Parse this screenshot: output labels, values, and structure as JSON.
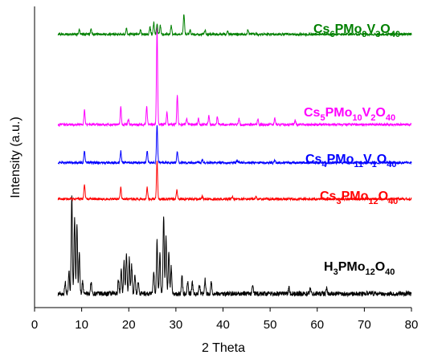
{
  "chart_data": {
    "type": "line",
    "xlabel": "2 Theta",
    "ylabel": "Intensity (a.u.)",
    "xlim": [
      0,
      80
    ],
    "xticks": [
      0,
      10,
      20,
      30,
      40,
      50,
      60,
      70,
      80
    ],
    "x_range": [
      5,
      80
    ],
    "grid": false,
    "yticks_visible": false,
    "series": [
      {
        "name": "H3PMo12O40",
        "label_parts": [
          [
            "H",
            ""
          ],
          [
            "3",
            "sub"
          ],
          [
            "PMo",
            ""
          ],
          [
            "12",
            "sub"
          ],
          [
            "O",
            ""
          ],
          [
            "40",
            "sub"
          ]
        ],
        "color": "#000000",
        "baseline": 0.02,
        "noise": 0.008,
        "peaks": [
          [
            6.5,
            0.04
          ],
          [
            7.3,
            0.08
          ],
          [
            7.9,
            0.34
          ],
          [
            8.5,
            0.26
          ],
          [
            9.0,
            0.24
          ],
          [
            9.5,
            0.14
          ],
          [
            10.2,
            0.04
          ],
          [
            12.0,
            0.04
          ],
          [
            17.8,
            0.05
          ],
          [
            18.4,
            0.08
          ],
          [
            19.0,
            0.11
          ],
          [
            19.5,
            0.14
          ],
          [
            20.1,
            0.12
          ],
          [
            20.6,
            0.1
          ],
          [
            21.3,
            0.07
          ],
          [
            22.0,
            0.04
          ],
          [
            25.3,
            0.08
          ],
          [
            26.0,
            0.18
          ],
          [
            26.6,
            0.14
          ],
          [
            27.4,
            0.27
          ],
          [
            27.9,
            0.2
          ],
          [
            28.5,
            0.15
          ],
          [
            29.0,
            0.09
          ],
          [
            31.3,
            0.06
          ],
          [
            32.5,
            0.04
          ],
          [
            33.5,
            0.04
          ],
          [
            35.0,
            0.03
          ],
          [
            36.2,
            0.05
          ],
          [
            37.5,
            0.04
          ],
          [
            46.3,
            0.03
          ],
          [
            54.0,
            0.02
          ],
          [
            58.5,
            0.015
          ],
          [
            62.0,
            0.02
          ]
        ]
      },
      {
        "name": "Cs3PMo12O40",
        "label_parts": [
          [
            "Cs",
            ""
          ],
          [
            "3",
            "sub"
          ],
          [
            "PMo",
            ""
          ],
          [
            "12",
            "sub"
          ],
          [
            "O",
            ""
          ],
          [
            "40",
            "sub"
          ]
        ],
        "color": "#ff0000",
        "baseline": 0.343,
        "noise": 0.004,
        "peaks": [
          [
            10.6,
            0.05
          ],
          [
            18.3,
            0.04
          ],
          [
            23.9,
            0.04
          ],
          [
            26.0,
            0.13
          ],
          [
            30.2,
            0.03
          ],
          [
            35.6,
            0.01
          ],
          [
            42.0,
            0.008
          ],
          [
            47.0,
            0.008
          ]
        ]
      },
      {
        "name": "Cs4PMo11V1O40",
        "label_parts": [
          [
            "Cs",
            ""
          ],
          [
            "4",
            "sub"
          ],
          [
            "PMo",
            ""
          ],
          [
            "11",
            "sub"
          ],
          [
            "V",
            ""
          ],
          [
            "1",
            "sub"
          ],
          [
            "O",
            ""
          ],
          [
            "40",
            "sub"
          ]
        ],
        "color": "#0000ff",
        "baseline": 0.467,
        "noise": 0.004,
        "peaks": [
          [
            10.6,
            0.04
          ],
          [
            18.3,
            0.04
          ],
          [
            23.9,
            0.04
          ],
          [
            26.0,
            0.13
          ],
          [
            30.3,
            0.04
          ],
          [
            35.6,
            0.01
          ],
          [
            43.0,
            0.008
          ],
          [
            51.0,
            0.008
          ]
        ]
      },
      {
        "name": "Cs5PMo10V2O40",
        "label_parts": [
          [
            "Cs",
            ""
          ],
          [
            "5",
            "sub"
          ],
          [
            "PMo",
            ""
          ],
          [
            "10",
            "sub"
          ],
          [
            "V",
            ""
          ],
          [
            "2",
            "sub"
          ],
          [
            "O",
            ""
          ],
          [
            "40",
            "sub"
          ]
        ],
        "color": "#ff00ff",
        "baseline": 0.597,
        "noise": 0.004,
        "peaks": [
          [
            10.6,
            0.05
          ],
          [
            18.3,
            0.06
          ],
          [
            19.9,
            0.02
          ],
          [
            23.8,
            0.06
          ],
          [
            26.0,
            0.33
          ],
          [
            28.1,
            0.04
          ],
          [
            30.3,
            0.1
          ],
          [
            32.3,
            0.02
          ],
          [
            34.8,
            0.02
          ],
          [
            37.0,
            0.03
          ],
          [
            38.8,
            0.025
          ],
          [
            43.4,
            0.02
          ],
          [
            47.4,
            0.02
          ],
          [
            51.0,
            0.02
          ],
          [
            55.3,
            0.015
          ]
        ]
      },
      {
        "name": "Cs6PMo9V3O40",
        "label_parts": [
          [
            "Cs",
            ""
          ],
          [
            "6",
            "sub"
          ],
          [
            "PMo",
            ""
          ],
          [
            "9",
            "sub"
          ],
          [
            "V",
            ""
          ],
          [
            "3",
            "sub"
          ],
          [
            "O",
            ""
          ],
          [
            "40",
            "sub"
          ]
        ],
        "color": "#008000",
        "baseline": 0.905,
        "noise": 0.004,
        "peaks": [
          [
            9.5,
            0.015
          ],
          [
            12.0,
            0.02
          ],
          [
            19.5,
            0.02
          ],
          [
            22.5,
            0.015
          ],
          [
            24.5,
            0.025
          ],
          [
            25.3,
            0.04
          ],
          [
            26.0,
            0.035
          ],
          [
            26.7,
            0.03
          ],
          [
            29.0,
            0.03
          ],
          [
            31.7,
            0.07
          ],
          [
            33.0,
            0.015
          ],
          [
            36.2,
            0.015
          ],
          [
            41.0,
            0.01
          ],
          [
            45.3,
            0.015
          ]
        ]
      }
    ]
  }
}
